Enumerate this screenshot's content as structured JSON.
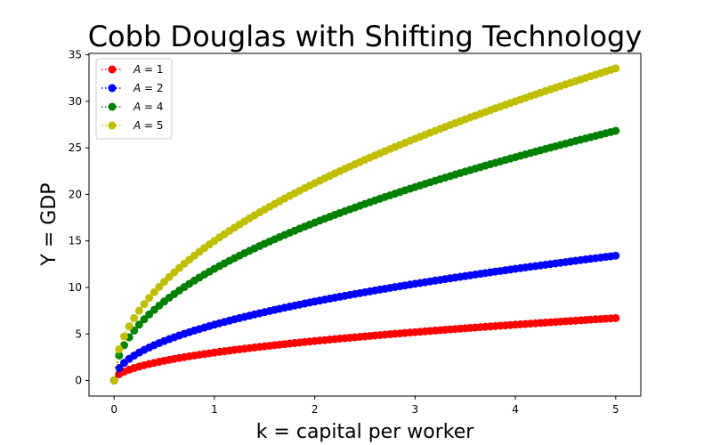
{
  "chart_data": {
    "type": "scatter",
    "title": "Cobb Douglas with Shifting Technology",
    "xlabel": "k = capital per worker",
    "ylabel": "Y = GDP",
    "xlim": [
      -0.25,
      5.25
    ],
    "ylim": [
      -1.67,
      35.15
    ],
    "xticks": [
      0,
      1,
      2,
      3,
      4,
      5
    ],
    "yticks": [
      0,
      5,
      10,
      15,
      20,
      25,
      30,
      35
    ],
    "grid": false,
    "legend_position": "top-left",
    "x_range": [
      0,
      5
    ],
    "n_points": 101,
    "exponent": 0.5,
    "series": [
      {
        "name": "A = 1",
        "legend_prefix": "A",
        "legend_value": "1",
        "A": 1,
        "color": "#ff0000",
        "marker": "circle",
        "line_style": "dotted",
        "y_at_ticks": [
          {
            "x": 0,
            "y": 0
          },
          {
            "x": 1,
            "y": 3.0
          },
          {
            "x": 2,
            "y": 4.2
          },
          {
            "x": 3,
            "y": 5.2
          },
          {
            "x": 4,
            "y": 6.0
          },
          {
            "x": 5,
            "y": 6.7
          }
        ]
      },
      {
        "name": "A = 2",
        "legend_prefix": "A",
        "legend_value": "2",
        "A": 2,
        "color": "#0000ff",
        "marker": "circle",
        "line_style": "dotted",
        "y_at_ticks": [
          {
            "x": 0,
            "y": 0
          },
          {
            "x": 1,
            "y": 6.0
          },
          {
            "x": 2,
            "y": 8.5
          },
          {
            "x": 3,
            "y": 10.4
          },
          {
            "x": 4,
            "y": 12.0
          },
          {
            "x": 5,
            "y": 13.4
          }
        ]
      },
      {
        "name": "A = 4",
        "legend_prefix": "A",
        "legend_value": "4",
        "A": 4,
        "color": "#008000",
        "marker": "circle",
        "line_style": "dotted",
        "y_at_ticks": [
          {
            "x": 0,
            "y": 0
          },
          {
            "x": 1,
            "y": 12.0
          },
          {
            "x": 2,
            "y": 17.0
          },
          {
            "x": 3,
            "y": 20.8
          },
          {
            "x": 4,
            "y": 24.0
          },
          {
            "x": 5,
            "y": 26.8
          }
        ]
      },
      {
        "name": "A = 5",
        "legend_prefix": "A",
        "legend_value": "5",
        "A": 5,
        "color": "#bfbf00",
        "marker": "circle",
        "line_style": "dotted",
        "y_at_ticks": [
          {
            "x": 0,
            "y": 0
          },
          {
            "x": 1,
            "y": 15.0
          },
          {
            "x": 2,
            "y": 21.2
          },
          {
            "x": 3,
            "y": 26.0
          },
          {
            "x": 4,
            "y": 30.0
          },
          {
            "x": 5,
            "y": 33.5
          }
        ]
      }
    ]
  }
}
